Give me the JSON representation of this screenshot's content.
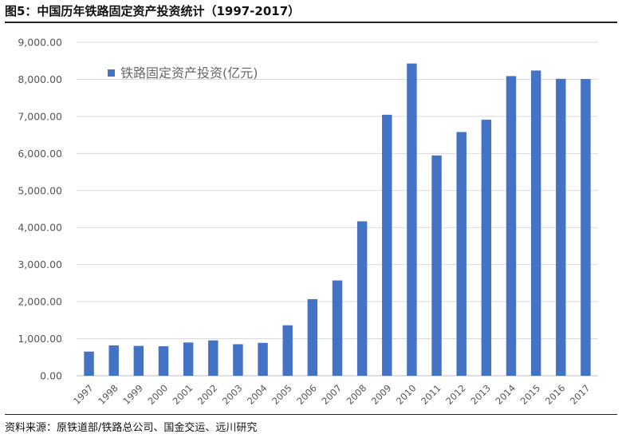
{
  "title": "图5：中国历年铁路固定资产投资统计（1997-2017）",
  "source": "资料来源：原铁道部/铁路总公司、国金交运、远川研究",
  "chart_data": {
    "type": "bar",
    "categories": [
      "1997",
      "1998",
      "1999",
      "2000",
      "2001",
      "2002",
      "2003",
      "2004",
      "2005",
      "2006",
      "2007",
      "2008",
      "2009",
      "2010",
      "2011",
      "2012",
      "2013",
      "2014",
      "2015",
      "2016",
      "2017"
    ],
    "series": [
      {
        "name": "铁路固定资产投资(亿元)",
        "values": [
          653,
          820,
          806,
          796,
          898,
          955,
          852,
          888,
          1363,
          2068,
          2573,
          4168,
          7044,
          8427,
          5946,
          6578,
          6910,
          8088,
          8238,
          8015,
          8010
        ]
      }
    ],
    "ylim": [
      0,
      9000
    ],
    "yticks": [
      "0.00",
      "1,000.00",
      "2,000.00",
      "3,000.00",
      "4,000.00",
      "5,000.00",
      "6,000.00",
      "7,000.00",
      "8,000.00",
      "9,000.00"
    ],
    "xlabel": "",
    "ylabel": "",
    "grid": true,
    "legend": "top-left",
    "colors": {
      "bar": "#4472C4",
      "grid": "#d9d9d9",
      "axis": "#bfbfbf"
    }
  }
}
